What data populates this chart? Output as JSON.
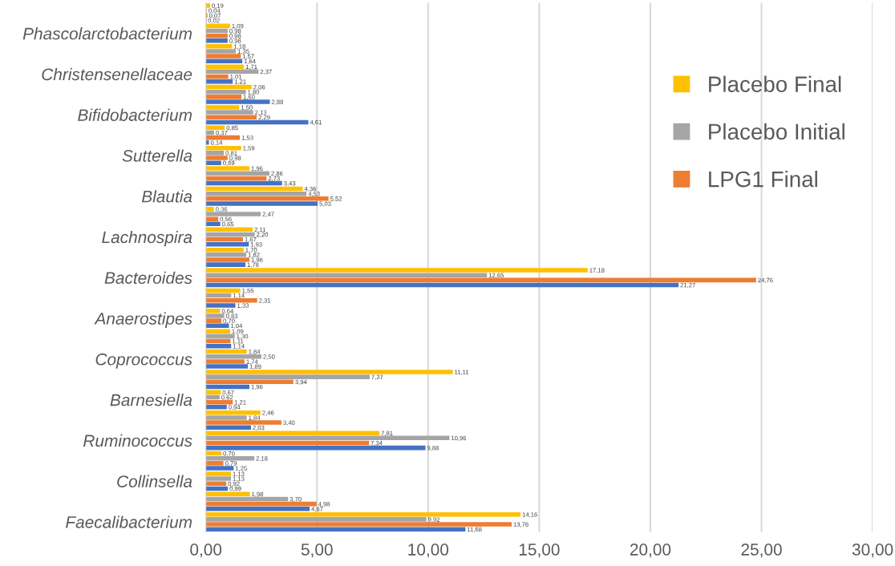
{
  "chart_data": {
    "type": "bar",
    "orientation": "horizontal",
    "categories": [
      null,
      "Phascolarctobacterium",
      null,
      "Christensenellaceae",
      null,
      "Bifidobacterium",
      null,
      "Sutterella",
      null,
      "Blautia",
      null,
      "Lachnospira",
      null,
      "Bacteroides",
      null,
      "Anaerostipes",
      null,
      "Coprococcus",
      null,
      "Barnesiella",
      null,
      "Ruminococcus",
      null,
      "Collinsella",
      null,
      "Faecalibacterium"
    ],
    "series": [
      {
        "color": "#4472c4",
        "values": [
          0.02,
          0.98,
          1.64,
          1.21,
          2.88,
          4.61,
          0.14,
          0.69,
          3.43,
          5.03,
          0.65,
          1.93,
          1.78,
          21.27,
          1.33,
          1.04,
          1.14,
          1.89,
          1.96,
          0.94,
          2.03,
          9.88,
          1.25,
          0.99,
          4.67,
          11.68
        ],
        "value_labels": [
          "0,02",
          "0,98",
          "1,64",
          "1,21",
          "2,88",
          "4,61",
          "0,14",
          "0,69",
          "3,43",
          "5,03",
          "0,65",
          "1,93",
          "1,78",
          "21,27",
          "1,33",
          "1,04",
          "1,14",
          "1,89",
          "1,96",
          "0,94",
          "2,03",
          "9,88",
          "1,25",
          "0,99",
          "4,67",
          "11,68"
        ]
      },
      {
        "name": "LPG1 Final",
        "color": "#ed7d31",
        "values": [
          0.07,
          0.98,
          1.57,
          1.01,
          1.6,
          2.29,
          1.53,
          0.98,
          2.73,
          5.52,
          0.56,
          1.67,
          1.96,
          24.76,
          2.31,
          0.7,
          1.11,
          1.74,
          3.94,
          1.21,
          3.4,
          7.34,
          0.79,
          0.92,
          4.98,
          13.76
        ],
        "value_labels": [
          "0,07",
          "0,98",
          "1,57",
          "1,01",
          "1,60",
          "2,29",
          "1,53",
          "0,98",
          "2,73",
          "5,52",
          "0,56",
          "1,67",
          "1,96",
          "24,76",
          "2,31",
          "0,70",
          "1,11",
          "1,74",
          "3,94",
          "1,21",
          "3,40",
          "7,34",
          "0,79",
          "0,92",
          "4,98",
          "13,76"
        ]
      },
      {
        "name": "Placebo Initial",
        "color": "#a5a5a5",
        "values": [
          0.04,
          0.98,
          1.35,
          2.37,
          1.8,
          2.13,
          0.37,
          0.81,
          2.86,
          4.53,
          2.47,
          2.2,
          1.82,
          12.65,
          1.14,
          0.83,
          1.3,
          2.5,
          7.37,
          0.62,
          1.84,
          10.96,
          2.18,
          1.13,
          3.7,
          9.92
        ],
        "value_labels": [
          "0,04",
          "0,98",
          "1,35",
          "2,37",
          "1,80",
          "2,13",
          "0,37",
          "0,81",
          "2,86",
          "4,53",
          "2,47",
          "2,20",
          "1,82",
          "12,65",
          "1,14",
          "0,83",
          "1,30",
          "2,50",
          "7,37",
          "0,62",
          "1,84",
          "10,96",
          "2,18",
          "1,13",
          "3,70",
          "9,92"
        ]
      },
      {
        "name": "Placebo Final",
        "color": "#ffc000",
        "values": [
          0.19,
          1.09,
          1.18,
          1.71,
          2.06,
          1.5,
          0.85,
          1.59,
          1.96,
          4.36,
          0.36,
          2.11,
          1.7,
          17.18,
          1.55,
          0.64,
          1.09,
          1.84,
          11.11,
          0.67,
          2.46,
          7.81,
          0.7,
          1.13,
          1.98,
          14.16
        ],
        "value_labels": [
          "0,19",
          "1,09",
          "1,18",
          "1,71",
          "2,06",
          "1,50",
          "0,85",
          "1,59",
          "1,96",
          "4,36",
          "0,36",
          "2,11",
          "1,70",
          "17,18",
          "1,55",
          "0,64",
          "1,09",
          "1,84",
          "11,11",
          "0,67",
          "2,46",
          "7,81",
          "0,70",
          "1,13",
          "1,98",
          "14,16"
        ]
      }
    ],
    "xlim": [
      0,
      30
    ],
    "xticks": [
      {
        "value": 0,
        "label": "0,00"
      },
      {
        "value": 5,
        "label": "5,00"
      },
      {
        "value": 10,
        "label": "10,00"
      },
      {
        "value": 15,
        "label": "15,00"
      },
      {
        "value": 20,
        "label": "20,00"
      },
      {
        "value": 25,
        "label": "25,00"
      },
      {
        "value": 30,
        "label": "30,00"
      }
    ],
    "grid": "x",
    "legend": "top right"
  }
}
